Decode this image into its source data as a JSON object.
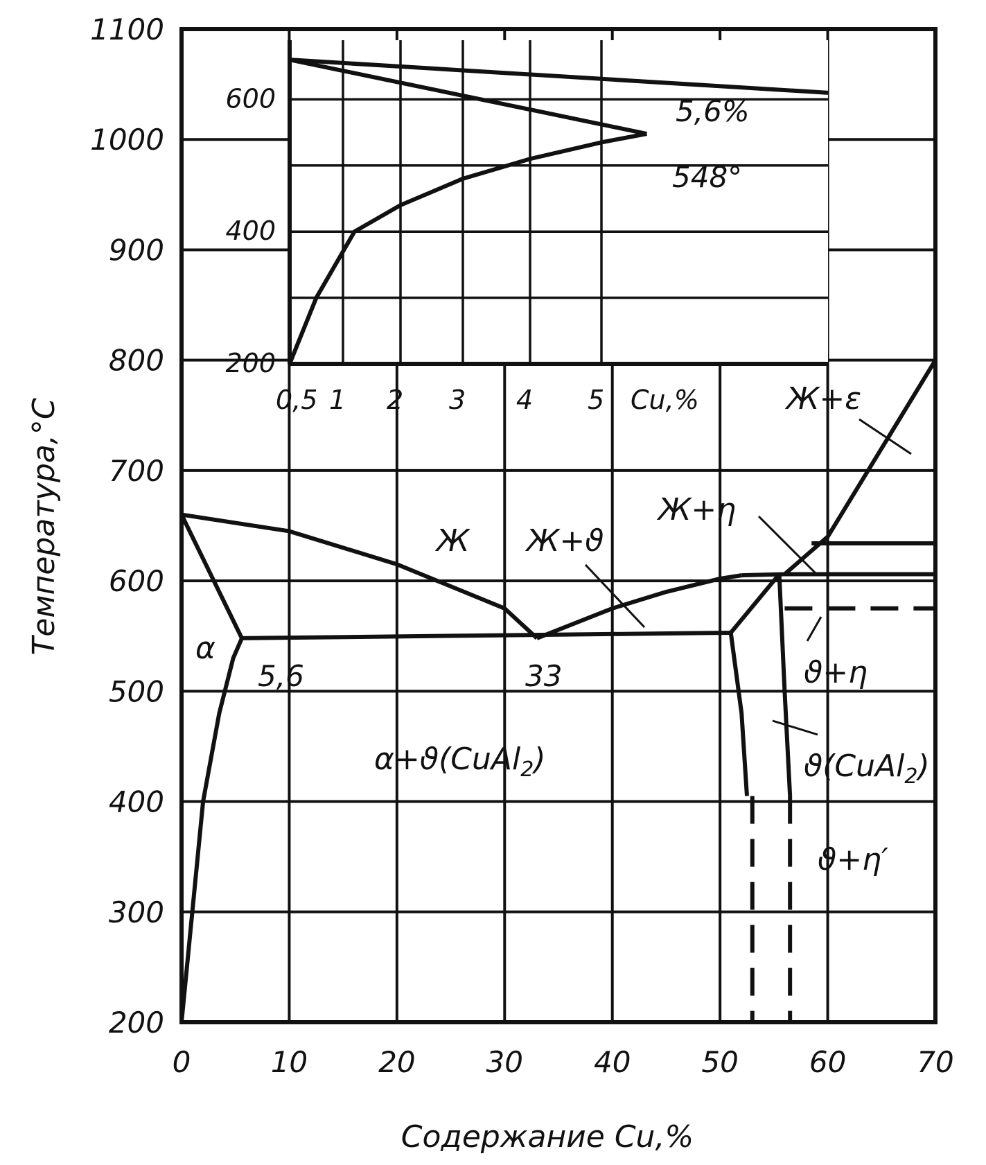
{
  "chart_data": {
    "type": "line",
    "title": "",
    "xlabel": "Содержание Cu,%",
    "ylabel": "Температура,°С",
    "xlim": [
      0,
      70
    ],
    "ylim": [
      200,
      1100
    ],
    "x_ticks": [
      "0",
      "10",
      "20",
      "30",
      "40",
      "50",
      "60",
      "70"
    ],
    "y_ticks": [
      "200",
      "300",
      "400",
      "500",
      "600",
      "700",
      "800",
      "900",
      "1000",
      "1100"
    ],
    "grid": true,
    "series": [
      {
        "x": [
          0,
          10,
          20,
          30,
          33
        ],
        "y": [
          660,
          645,
          615,
          575,
          548
        ]
      },
      {
        "x": [
          33,
          40,
          45,
          50,
          52
        ],
        "y": [
          548,
          575,
          590,
          602,
          605
        ]
      },
      {
        "x": [
          52,
          56,
          60,
          65,
          70
        ],
        "y": [
          605,
          606,
          640,
          720,
          800
        ]
      },
      {
        "x": [
          0,
          5.6
        ],
        "y": [
          660,
          548
        ]
      },
      {
        "x": [
          5.6,
          51
        ],
        "y": [
          548,
          553
        ]
      },
      {
        "x": [
          51,
          55.5
        ],
        "y": [
          553,
          606
        ]
      },
      {
        "x": [
          56,
          70
        ],
        "y": [
          606,
          606
        ]
      },
      {
        "x": [
          58.5,
          70
        ],
        "y": [
          634,
          634
        ]
      },
      {
        "x": [
          0,
          1,
          2,
          3.5,
          4.8,
          5.6
        ],
        "y": [
          200,
          300,
          400,
          480,
          530,
          548
        ]
      },
      {
        "x": [
          51,
          52,
          52.5
        ],
        "y": [
          553,
          480,
          405
        ]
      },
      {
        "x": [
          55.5,
          56,
          56.5
        ],
        "y": [
          606,
          500,
          405
        ]
      }
    ],
    "dashed_series": [
      {
        "x": [
          56,
          70
        ],
        "y": [
          575,
          575
        ]
      },
      {
        "x": [
          53,
          53
        ],
        "y": [
          405,
          200
        ]
      },
      {
        "x": [
          56.5,
          56.5
        ],
        "y": [
          405,
          200
        ]
      }
    ],
    "annotations": {
      "regions": [
        "α",
        "Ж",
        "Ж+ϑ",
        "Ж+η",
        "Ж+ε",
        "ϑ+η",
        "ϑ(CuAl",
        "2",
        ")",
        "α+ϑ(CuAl",
        "2",
        ")",
        "ϑ+η′"
      ],
      "points": [
        "5,6",
        "33"
      ]
    },
    "inset": {
      "type": "line",
      "xlabel": "Cu,%",
      "x_ticks": [
        "0,5",
        "1",
        "2",
        "3",
        "4",
        "5"
      ],
      "y_ticks": [
        "200",
        "400",
        "600"
      ],
      "solvus": {
        "x": [
          0.5,
          0.75,
          1.2,
          2,
          3,
          4,
          5,
          5.6
        ],
        "y": [
          200,
          300,
          400,
          440,
          480,
          510,
          535,
          548
        ]
      },
      "upper_lines": [
        {
          "x": [
            0.5,
            5.6
          ],
          "y": [
            660,
            548
          ]
        },
        {
          "x": [
            0.5,
            8
          ],
          "y": [
            660,
            610
          ]
        }
      ],
      "eutectic_label": [
        "5,6%",
        "548°"
      ]
    }
  }
}
